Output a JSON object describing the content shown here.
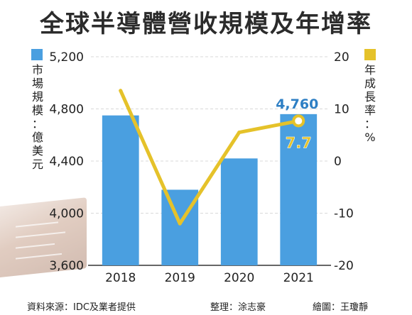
{
  "title": "全球半導體營收規模及年增率",
  "legend": {
    "bar_label": "市場規模：億美元",
    "line_label": "年成長率：%",
    "bar_color": "#4a9fe0",
    "line_color": "#e5c22a"
  },
  "chart_data": {
    "type": "bar+line",
    "categories": [
      "2018",
      "2019",
      "2020",
      "2021"
    ],
    "series": [
      {
        "name": "市場規模：億美元",
        "type": "bar",
        "axis": "left",
        "values": [
          4750,
          4180,
          4420,
          4760
        ]
      },
      {
        "name": "年成長率：%",
        "type": "line",
        "axis": "right",
        "values": [
          13.5,
          -12.0,
          5.5,
          7.7
        ]
      }
    ],
    "left_axis": {
      "range": [
        3600,
        5200
      ],
      "ticks": [
        "3,600",
        "4,000",
        "4,400",
        "4,800",
        "5,200"
      ]
    },
    "right_axis": {
      "range": [
        -20,
        20
      ],
      "ticks": [
        "-20",
        "-10",
        "0",
        "10",
        "20"
      ]
    },
    "annotations": [
      {
        "category": "2021",
        "bar_label": "4,760",
        "line_label": "7.7"
      }
    ]
  },
  "footer": {
    "source": "資料來源：IDC及業者提供",
    "editor": "整理：涂志豪",
    "illustrator": "繪圖：王瓊靜"
  }
}
